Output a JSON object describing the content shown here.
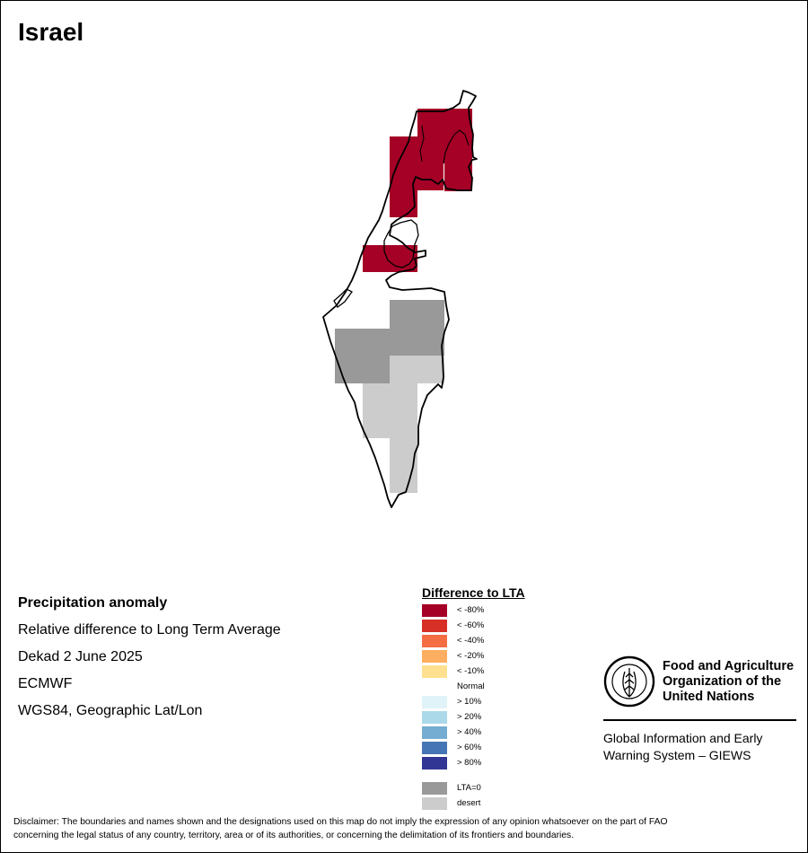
{
  "map": {
    "title": "Israel"
  },
  "info": {
    "heading": "Precipitation anomaly",
    "line1": "Relative difference to Long Term Average",
    "line2": "Dekad 2 June 2025",
    "line3": "ECMWF",
    "line4": "WGS84, Geographic Lat/Lon"
  },
  "legend": {
    "title": "Difference to LTA",
    "items": [
      {
        "label": "< -80%",
        "color": "#a50026"
      },
      {
        "label": "< -60%",
        "color": "#d73027"
      },
      {
        "label": "< -40%",
        "color": "#f46d43"
      },
      {
        "label": "< -20%",
        "color": "#fdae61"
      },
      {
        "label": "< -10%",
        "color": "#fee090"
      },
      {
        "label": "Normal",
        "color": "#ffffff"
      },
      {
        "label": "> 10%",
        "color": "#e0f3f8"
      },
      {
        "label": "> 20%",
        "color": "#abd9e9"
      },
      {
        "label": "> 40%",
        "color": "#74add1"
      },
      {
        "label": "> 60%",
        "color": "#4575b4"
      },
      {
        "label": "> 80%",
        "color": "#313695"
      }
    ],
    "extra": [
      {
        "label": "LTA=0",
        "color": "#999999"
      },
      {
        "label": "desert",
        "color": "#cccccc"
      }
    ]
  },
  "org": {
    "name_line1": "Food and Agriculture",
    "name_line2": "Organization of the",
    "name_line3": "United Nations",
    "giews_line1": "Global Information and Early",
    "giews_line2": "Warning System – GIEWS",
    "logo_text": "FAO",
    "logo_motto": "FIAT PANIS"
  },
  "disclaimer": {
    "line1": "Disclaimer: The boundaries and names shown and the designations used on this map do not imply the expression of any opinion whatsoever on the part of FAO",
    "line2": "concerning the legal status of any country, territory, area or of its authorities, or concerning the delimitation of its frontiers and boundaries."
  }
}
